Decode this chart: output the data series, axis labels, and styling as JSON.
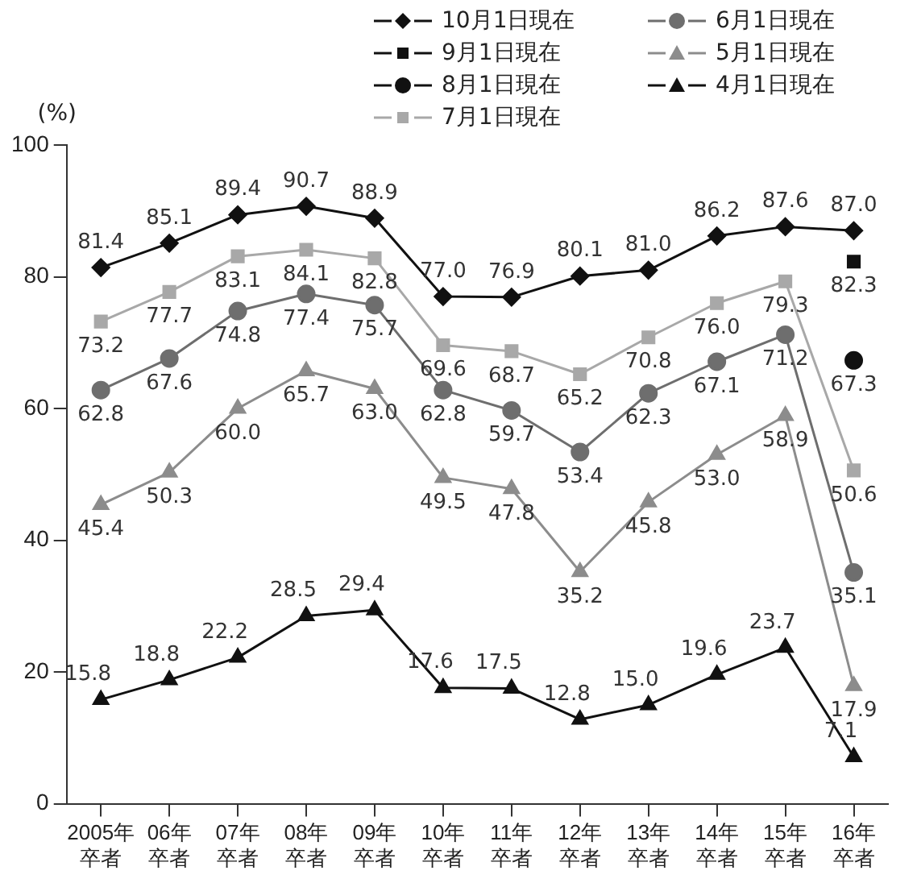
{
  "chart_data": {
    "type": "line",
    "ylabel": "(%)",
    "categories": [
      "2005年卒者",
      "06年卒者",
      "07年卒者",
      "08年卒者",
      "09年卒者",
      "10年卒者",
      "11年卒者",
      "12年卒者",
      "13年卒者",
      "14年卒者",
      "15年卒者",
      "16年卒者"
    ],
    "ylim": [
      0,
      100
    ],
    "yticks": [
      0,
      20,
      40,
      60,
      80,
      100
    ],
    "legend": "top right",
    "line_style": "solid",
    "series": [
      {
        "name": "10月1日現在",
        "color": "#111111",
        "marker": "diamond",
        "values": [
          81.4,
          85.1,
          89.4,
          90.7,
          88.9,
          77.0,
          76.9,
          80.1,
          81.0,
          86.2,
          87.6,
          87.0
        ],
        "value_labels": [
          "81.4",
          "85.1",
          "89.4",
          "90.7",
          "88.9",
          "77.0",
          "76.9",
          "80.1",
          "81.0",
          "86.2",
          "87.6",
          "87.0"
        ]
      },
      {
        "name": "6月1日現在",
        "color": "#6e6e6e",
        "marker": "circle",
        "values": [
          62.8,
          67.6,
          74.8,
          77.4,
          75.7,
          62.8,
          59.7,
          53.4,
          62.3,
          67.1,
          71.2,
          35.1
        ],
        "value_labels": [
          "62.8",
          "67.6",
          "74.8",
          "77.4",
          "75.7",
          "62.8",
          "59.7",
          "53.4",
          "62.3",
          "67.1",
          "71.2",
          "35.1"
        ]
      },
      {
        "name": "9月1日現在",
        "color": "#111111",
        "marker": "square",
        "values": [
          null,
          null,
          null,
          null,
          null,
          null,
          null,
          null,
          null,
          null,
          null,
          82.3
        ],
        "value_labels": [
          null,
          null,
          null,
          null,
          null,
          null,
          null,
          null,
          null,
          null,
          null,
          "82.3"
        ]
      },
      {
        "name": "5月1日現在",
        "color": "#8c8c8c",
        "marker": "triangle",
        "values": [
          45.4,
          50.3,
          60.0,
          65.7,
          63.0,
          49.5,
          47.8,
          35.2,
          45.8,
          53.0,
          58.9,
          17.9
        ],
        "value_labels": [
          "45.4",
          "50.3",
          "60.0",
          "65.7",
          "63.0",
          "49.5",
          "47.8",
          "35.2",
          "45.8",
          "53.0",
          "58.9",
          "17.9"
        ]
      },
      {
        "name": "8月1日現在",
        "color": "#111111",
        "marker": "circle",
        "values": [
          null,
          null,
          null,
          null,
          null,
          null,
          null,
          null,
          null,
          null,
          null,
          67.3
        ],
        "value_labels": [
          null,
          null,
          null,
          null,
          null,
          null,
          null,
          null,
          null,
          null,
          null,
          "67.3"
        ]
      },
      {
        "name": "4月1日現在",
        "color": "#111111",
        "marker": "triangle",
        "values": [
          15.8,
          18.8,
          22.2,
          28.5,
          29.4,
          17.6,
          17.5,
          12.8,
          15.0,
          19.6,
          23.7,
          7.1
        ],
        "value_labels": [
          "15.8",
          "18.8",
          "22.2",
          "28.5",
          "29.4",
          "17.6",
          "17.5",
          "12.8",
          "15.0",
          "19.6",
          "23.7",
          "7.1"
        ]
      },
      {
        "name": "7月1日現在",
        "color": "#a8a8a8",
        "marker": "square",
        "values": [
          73.2,
          77.7,
          83.1,
          84.1,
          82.8,
          69.6,
          68.7,
          65.2,
          70.8,
          76.0,
          79.3,
          50.6
        ],
        "value_labels": [
          "73.2",
          "77.7",
          "83.1",
          "84.1",
          "82.8",
          "69.6",
          "68.7",
          "65.2",
          "70.8",
          "76.0",
          "79.3",
          "50.6"
        ]
      }
    ]
  }
}
